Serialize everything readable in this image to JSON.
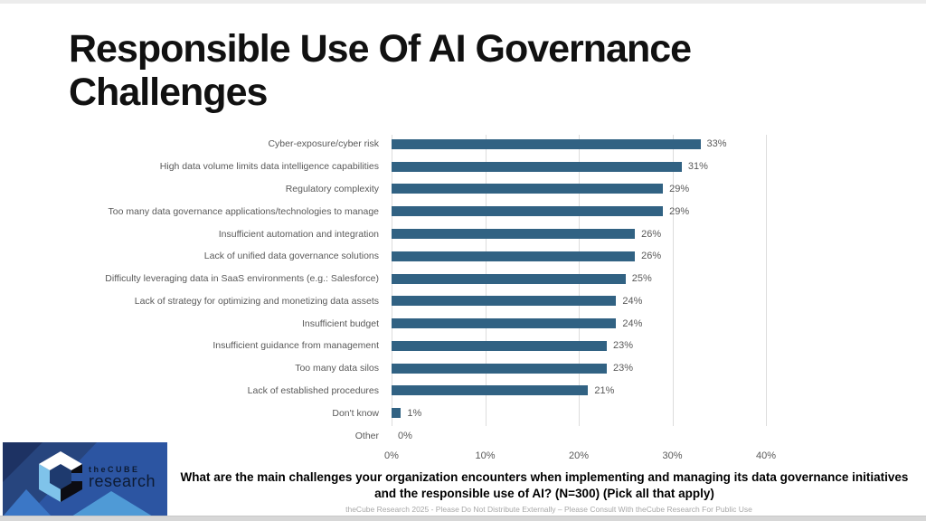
{
  "slide": {
    "title": "Responsible Use Of AI Governance Challenges"
  },
  "chart_data": {
    "type": "bar",
    "orientation": "horizontal",
    "title": "Responsible Use Of AI Governance Challenges",
    "categories": [
      "Cyber-exposure/cyber risk",
      "High data volume limits data intelligence capabilities",
      "Regulatory complexity",
      "Too many data governance applications/technologies to manage",
      "Insufficient automation and integration",
      "Lack of unified data governance solutions",
      "Difficulty leveraging data in SaaS environments (e.g.: Salesforce)",
      "Lack of strategy for optimizing and monetizing data assets",
      "Insufficient budget",
      "Insufficient guidance from management",
      "Too many data silos",
      "Lack of established procedures",
      "Don't know",
      "Other"
    ],
    "values": [
      33,
      31,
      29,
      29,
      26,
      26,
      25,
      24,
      24,
      23,
      23,
      21,
      1,
      0
    ],
    "value_labels": [
      "33%",
      "31%",
      "29%",
      "29%",
      "26%",
      "26%",
      "25%",
      "24%",
      "24%",
      "23%",
      "23%",
      "21%",
      "1%",
      "0%"
    ],
    "x_ticks": [
      "0%",
      "10%",
      "20%",
      "30%",
      "40%"
    ],
    "xlim": [
      0,
      40
    ],
    "grid": true,
    "bar_color": "#316283",
    "label_color": "#595959",
    "gridline_color": "#dddddd"
  },
  "logo": {
    "brand": "theCUBE",
    "sub": "research",
    "banner_color": "#2c55a2",
    "accent_dark": "#1e3a6e",
    "accent_light": "#4f9ad6",
    "cube_face_light": "#7fc3ea"
  },
  "footer": {
    "question": "What are the main challenges your organization encounters when implementing and managing its data governance initiatives and the responsible use of AI? (N=300) (Pick all that apply)",
    "disclaimer": "theCube Research 2025 - Please Do Not Distribute Externally – Please Consult With theCube Research For Public Use"
  }
}
